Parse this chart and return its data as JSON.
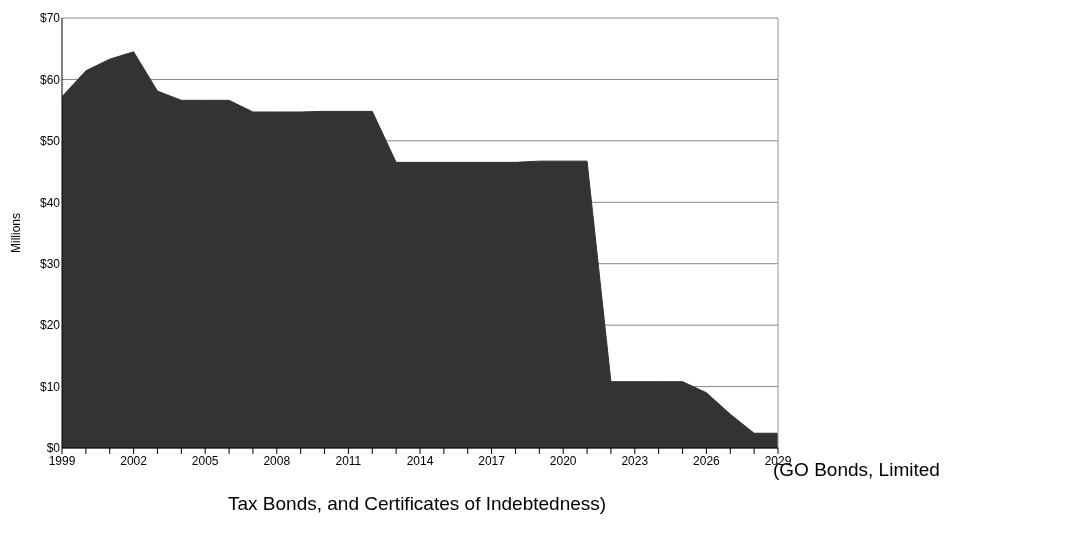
{
  "chart_data": {
    "type": "area",
    "ylabel": "Millions",
    "x": [
      1999,
      2000,
      2001,
      2002,
      2003,
      2004,
      2005,
      2006,
      2007,
      2008,
      2009,
      2010,
      2011,
      2012,
      2013,
      2014,
      2015,
      2016,
      2017,
      2018,
      2019,
      2020,
      2021,
      2022,
      2023,
      2024,
      2025,
      2026,
      2027,
      2028,
      2029
    ],
    "series": [
      {
        "color": "#333333",
        "values": [
          57.2,
          61.4,
          63.3,
          64.5,
          58.1,
          56.6,
          56.6,
          56.6,
          54.7,
          54.7,
          54.7,
          54.8,
          54.8,
          54.8,
          46.5,
          46.5,
          46.5,
          46.5,
          46.5,
          46.5,
          46.7,
          46.7,
          46.7,
          10.8,
          10.8,
          10.8,
          10.8,
          9,
          5.5,
          2.4,
          2.4
        ]
      }
    ],
    "xlim": [
      1999,
      2029
    ],
    "xticks": [
      1999,
      {
        "value": 2000,
        "label": null
      },
      {
        "value": 2001,
        "label": null
      },
      2002,
      {
        "value": 2003,
        "label": null
      },
      {
        "value": 2004,
        "label": null
      },
      2005,
      {
        "value": 2006,
        "label": null
      },
      {
        "value": 2007,
        "label": null
      },
      2008,
      {
        "value": 2009,
        "label": null
      },
      {
        "value": 2010,
        "label": null
      },
      2011,
      {
        "value": 2012,
        "label": null
      },
      {
        "value": 2013,
        "label": null
      },
      2014,
      {
        "value": 2015,
        "label": null
      },
      {
        "value": 2016,
        "label": null
      },
      2017,
      {
        "value": 2018,
        "label": null
      },
      {
        "value": 2019,
        "label": null
      },
      2020,
      {
        "value": 2021,
        "label": null
      },
      {
        "value": 2022,
        "label": null
      },
      2023,
      {
        "value": 2024,
        "label": null
      },
      {
        "value": 2025,
        "label": null
      },
      2026,
      {
        "value": 2027,
        "label": null
      },
      {
        "value": 2028,
        "label": null
      },
      2029
    ],
    "ylim": [
      0,
      70
    ],
    "yticks": [
      {
        "value": 0,
        "label": "$0"
      },
      {
        "value": 10,
        "label": "$10"
      },
      {
        "value": 20,
        "label": "$20"
      },
      {
        "value": 30,
        "label": "$30"
      },
      {
        "value": 40,
        "label": "$40"
      },
      {
        "value": 50,
        "label": "$50"
      },
      {
        "value": 60,
        "label": "$60"
      },
      {
        "value": 70,
        "label": "$70"
      }
    ],
    "grid": "y",
    "annotations": [
      "(GO Bonds, Limited Tax Bonds, and Certificates of Indebtedness)"
    ]
  }
}
